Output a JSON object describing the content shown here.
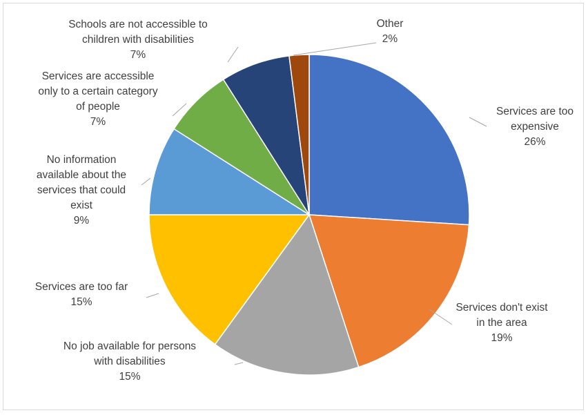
{
  "chart_data": {
    "type": "pie",
    "title": "",
    "slices": [
      {
        "label": [
          "Services are too",
          "expensive"
        ],
        "value": 26,
        "value_label": "26%",
        "color": "#4472c4"
      },
      {
        "label": [
          "Services don't exist",
          "in the area"
        ],
        "value": 19,
        "value_label": "19%",
        "color": "#ed7d31"
      },
      {
        "label": [
          "No job available for persons",
          "with disabilities"
        ],
        "value": 15,
        "value_label": "15%",
        "color": "#a5a5a5"
      },
      {
        "label": [
          "Services are too far"
        ],
        "value": 15,
        "value_label": "15%",
        "color": "#ffc000"
      },
      {
        "label": [
          "No information",
          "available about the",
          "services that could",
          "exist"
        ],
        "value": 9,
        "value_label": "9%",
        "color": "#5b9bd5"
      },
      {
        "label": [
          "Services are accessible",
          "only to a certain category",
          "of people"
        ],
        "value": 7,
        "value_label": "7%",
        "color": "#70ad47"
      },
      {
        "label": [
          "Schools are not accessible to",
          "children with disabilities"
        ],
        "value": 7,
        "value_label": "7%",
        "color": "#264478"
      },
      {
        "label": [
          "Other"
        ],
        "value": 2,
        "value_label": "2%",
        "color": "#9e480e"
      }
    ],
    "start": "top",
    "direction": "clockwise",
    "legend": "none",
    "data_labels": "outside with leader lines"
  }
}
